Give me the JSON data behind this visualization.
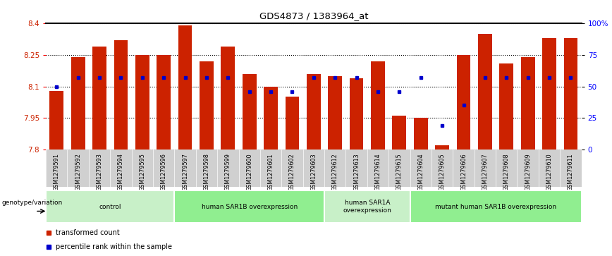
{
  "title": "GDS4873 / 1383964_at",
  "samples": [
    "GSM1279591",
    "GSM1279592",
    "GSM1279593",
    "GSM1279594",
    "GSM1279595",
    "GSM1279596",
    "GSM1279597",
    "GSM1279598",
    "GSM1279599",
    "GSM1279600",
    "GSM1279601",
    "GSM1279602",
    "GSM1279603",
    "GSM1279612",
    "GSM1279613",
    "GSM1279614",
    "GSM1279615",
    "GSM1279604",
    "GSM1279605",
    "GSM1279606",
    "GSM1279607",
    "GSM1279608",
    "GSM1279609",
    "GSM1279610",
    "GSM1279611"
  ],
  "transformed_counts": [
    8.08,
    8.24,
    8.29,
    8.32,
    8.25,
    8.25,
    8.39,
    8.22,
    8.29,
    8.16,
    8.1,
    8.05,
    8.16,
    8.15,
    8.14,
    8.22,
    7.96,
    7.95,
    7.82,
    8.25,
    8.35,
    8.21,
    8.24,
    8.33,
    8.33
  ],
  "percentile_ranks": [
    50,
    57,
    57,
    57,
    57,
    57,
    57,
    57,
    57,
    46,
    46,
    46,
    57,
    57,
    57,
    46,
    46,
    57,
    19,
    35,
    57,
    57,
    57,
    57,
    57
  ],
  "bar_color": "#cc2200",
  "dot_color": "#0000cc",
  "ylim": [
    7.8,
    8.4
  ],
  "yticks": [
    7.8,
    7.95,
    8.1,
    8.25,
    8.4
  ],
  "right_yticks": [
    0,
    25,
    50,
    75,
    100
  ],
  "groups": [
    {
      "label": "control",
      "start": 0,
      "end": 6,
      "color": "#c8f0c8"
    },
    {
      "label": "human SAR1B overexpression",
      "start": 6,
      "end": 13,
      "color": "#90ee90"
    },
    {
      "label": "human SAR1A\noverexpression",
      "start": 13,
      "end": 17,
      "color": "#c8f0c8"
    },
    {
      "label": "mutant human SAR1B overexpression",
      "start": 17,
      "end": 25,
      "color": "#90ee90"
    }
  ],
  "group_label": "genotype/variation",
  "legend_bar_label": "transformed count",
  "legend_dot_label": "percentile rank within the sample"
}
